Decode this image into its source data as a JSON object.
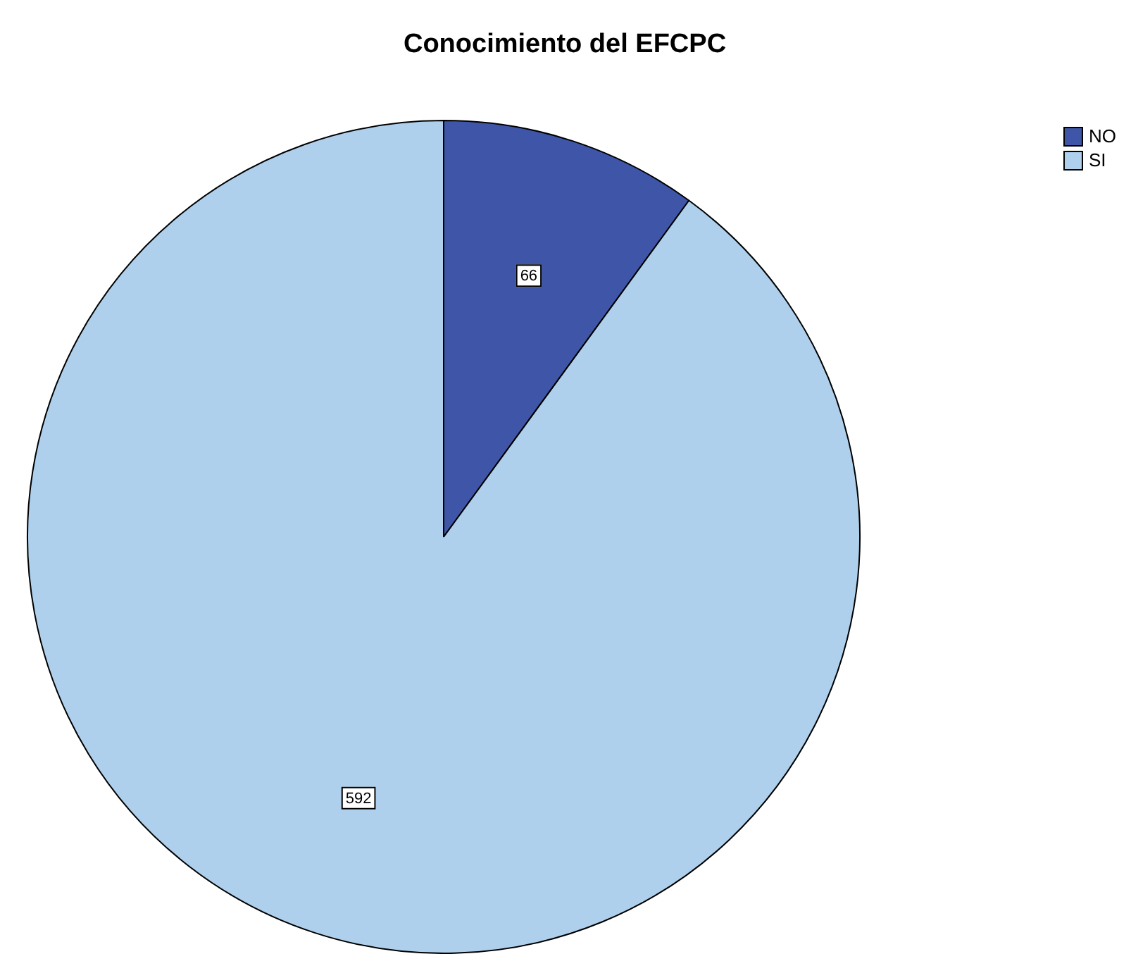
{
  "chart_data": {
    "type": "pie",
    "title": "Conocimiento del EFCPC",
    "categories": [
      "NO",
      "SI"
    ],
    "values": [
      66,
      592
    ],
    "colors": [
      "#3f56a8",
      "#aed0ec"
    ],
    "data_labels": true,
    "legend": "top right"
  }
}
